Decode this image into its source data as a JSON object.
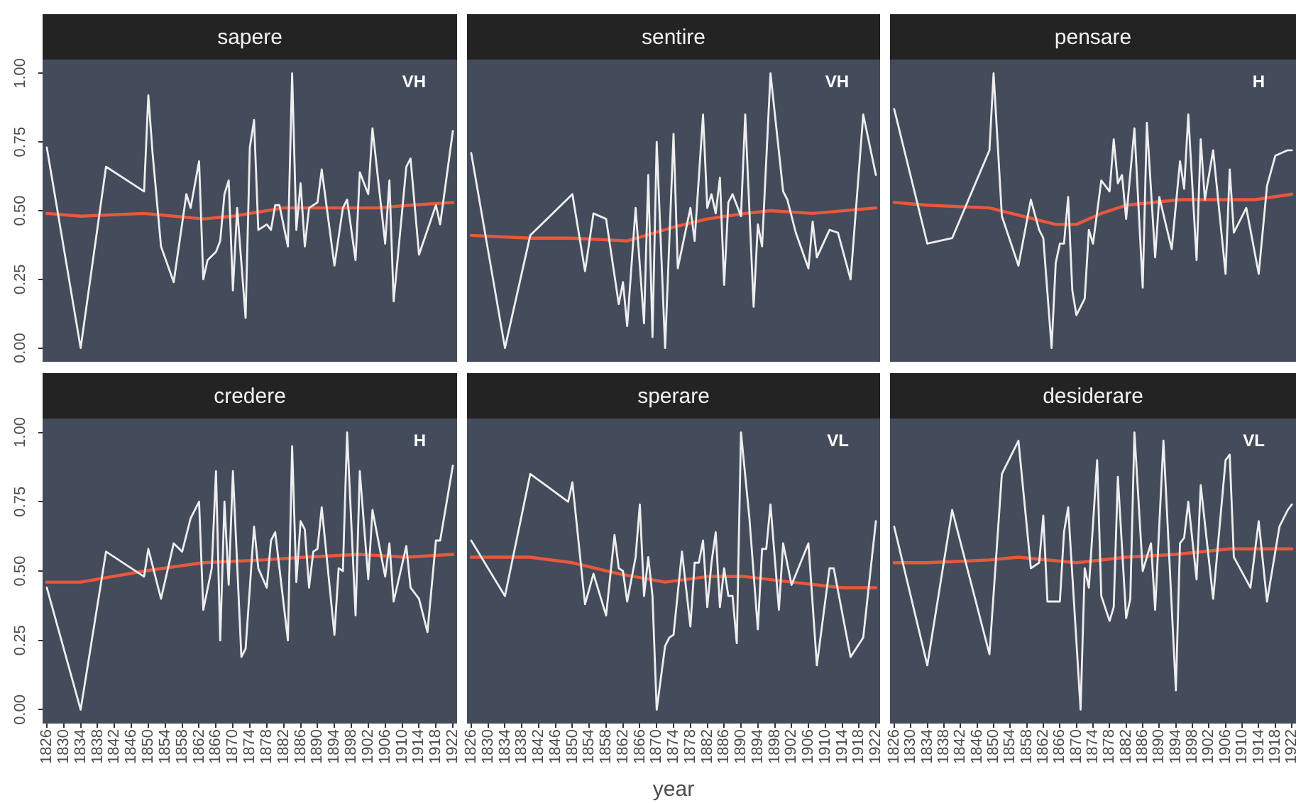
{
  "chart_data": [
    {
      "type": "line",
      "title": "sapere",
      "annotations": [
        "VH"
      ],
      "xlim": [
        1825,
        1923
      ],
      "xticks": [
        1826,
        1830,
        1834,
        1838,
        1842,
        1846,
        1850,
        1854,
        1858,
        1862,
        1866,
        1870,
        1874,
        1878,
        1882,
        1886,
        1890,
        1894,
        1898,
        1902,
        1906,
        1910,
        1914,
        1918,
        1922
      ],
      "ylim": [
        -0.05,
        1.05
      ],
      "yticks": [
        {
          "value": 0,
          "label": "0.00"
        },
        {
          "value": 0.25,
          "label": "0.25"
        },
        {
          "value": 0.5,
          "label": "0.50"
        },
        {
          "value": 0.75,
          "label": "0.75"
        },
        {
          "value": 1,
          "label": "1.00"
        }
      ],
      "tick_labels": "y",
      "grid": false,
      "legend": false,
      "marker": "none",
      "line_style": "solid",
      "series": [
        {
          "color": "#eeeeee",
          "x": [
            1826,
            1834,
            1840,
            1849,
            1850,
            1851,
            1853,
            1856,
            1859,
            1860,
            1862,
            1863,
            1864,
            1866,
            1867,
            1868,
            1869,
            1870,
            1871,
            1873,
            1874,
            1875,
            1876,
            1878,
            1879,
            1880,
            1881,
            1883,
            1884,
            1885,
            1886,
            1887,
            1888,
            1890,
            1891,
            1894,
            1896,
            1897,
            1899,
            1900,
            1902,
            1903,
            1906,
            1907,
            1908,
            1911,
            1912,
            1914,
            1918,
            1919,
            1922
          ],
          "values": [
            0.73,
            0,
            0.66,
            0.57,
            0.92,
            0.71,
            0.37,
            0.24,
            0.56,
            0.51,
            0.68,
            0.25,
            0.32,
            0.35,
            0.39,
            0.56,
            0.61,
            0.21,
            0.51,
            0.11,
            0.73,
            0.83,
            0.43,
            0.45,
            0.43,
            0.52,
            0.52,
            0.37,
            1.0,
            0.43,
            0.6,
            0.37,
            0.51,
            0.53,
            0.65,
            0.3,
            0.51,
            0.54,
            0.32,
            0.64,
            0.56,
            0.8,
            0.38,
            0.61,
            0.17,
            0.66,
            0.69,
            0.34,
            0.52,
            0.45,
            0.79
          ]
        },
        {
          "color": "#e8583c",
          "x": [
            1826,
            1834,
            1849,
            1863,
            1870,
            1882,
            1893,
            1904,
            1912,
            1922
          ],
          "values": [
            0.49,
            0.48,
            0.49,
            0.47,
            0.48,
            0.51,
            0.51,
            0.51,
            0.52,
            0.53
          ]
        }
      ]
    },
    {
      "type": "line",
      "title": "sentire",
      "annotations": [
        "VH"
      ],
      "xlim": [
        1825,
        1923
      ],
      "xticks": [
        1826,
        1830,
        1834,
        1838,
        1842,
        1846,
        1850,
        1854,
        1858,
        1862,
        1866,
        1870,
        1874,
        1878,
        1882,
        1886,
        1890,
        1894,
        1898,
        1902,
        1906,
        1910,
        1914,
        1918,
        1922
      ],
      "ylim": [
        -0.05,
        1.05
      ],
      "tick_labels": false,
      "grid": false,
      "legend": false,
      "marker": "none",
      "line_style": "solid",
      "series": [
        {
          "color": "#eeeeee",
          "x": [
            1826,
            1834,
            1840,
            1850,
            1853,
            1855,
            1858,
            1861,
            1862,
            1863,
            1865,
            1867,
            1868,
            1869,
            1870,
            1872,
            1874,
            1875,
            1878,
            1879,
            1881,
            1882,
            1883,
            1884,
            1885,
            1886,
            1887,
            1888,
            1890,
            1891,
            1893,
            1894,
            1895,
            1897,
            1900,
            1901,
            1903,
            1906,
            1907,
            1908,
            1911,
            1913,
            1916,
            1919,
            1922
          ],
          "values": [
            0.71,
            0,
            0.41,
            0.56,
            0.28,
            0.49,
            0.47,
            0.16,
            0.24,
            0.08,
            0.51,
            0.09,
            0.63,
            0.04,
            0.75,
            0,
            0.78,
            0.29,
            0.51,
            0.39,
            0.85,
            0.51,
            0.56,
            0.49,
            0.62,
            0.23,
            0.53,
            0.56,
            0.48,
            0.85,
            0.15,
            0.45,
            0.37,
            1.0,
            0.57,
            0.54,
            0.42,
            0.29,
            0.46,
            0.33,
            0.43,
            0.42,
            0.25,
            0.85,
            0.63
          ]
        },
        {
          "color": "#e8583c",
          "x": [
            1826,
            1840,
            1850,
            1863,
            1874,
            1882,
            1891,
            1897,
            1907,
            1922
          ],
          "values": [
            0.41,
            0.4,
            0.4,
            0.39,
            0.44,
            0.47,
            0.49,
            0.5,
            0.49,
            0.51
          ]
        }
      ]
    },
    {
      "type": "line",
      "title": "pensare",
      "annotations": [
        "H"
      ],
      "xlim": [
        1825,
        1923
      ],
      "xticks": [
        1826,
        1830,
        1834,
        1838,
        1842,
        1846,
        1850,
        1854,
        1858,
        1862,
        1866,
        1870,
        1874,
        1878,
        1882,
        1886,
        1890,
        1894,
        1898,
        1902,
        1906,
        1910,
        1914,
        1918,
        1922
      ],
      "ylim": [
        -0.05,
        1.05
      ],
      "tick_labels": false,
      "grid": false,
      "legend": false,
      "marker": "none",
      "line_style": "solid",
      "series": [
        {
          "color": "#eeeeee",
          "x": [
            1826,
            1834,
            1840,
            1849,
            1850,
            1852,
            1856,
            1859,
            1861,
            1862,
            1864,
            1865,
            1866,
            1867,
            1868,
            1869,
            1870,
            1872,
            1873,
            1874,
            1876,
            1878,
            1879,
            1880,
            1881,
            1882,
            1884,
            1886,
            1887,
            1889,
            1890,
            1893,
            1895,
            1896,
            1897,
            1899,
            1900,
            1901,
            1903,
            1906,
            1907,
            1908,
            1911,
            1914,
            1916,
            1918,
            1921,
            1922
          ],
          "values": [
            0.87,
            0.38,
            0.4,
            0.72,
            1.0,
            0.48,
            0.3,
            0.54,
            0.43,
            0.4,
            0,
            0.31,
            0.38,
            0.38,
            0.55,
            0.21,
            0.12,
            0.18,
            0.43,
            0.38,
            0.61,
            0.57,
            0.76,
            0.6,
            0.63,
            0.47,
            0.8,
            0.22,
            0.82,
            0.33,
            0.55,
            0.36,
            0.68,
            0.58,
            0.85,
            0.32,
            0.76,
            0.54,
            0.72,
            0.27,
            0.65,
            0.42,
            0.51,
            0.27,
            0.59,
            0.7,
            0.72,
            0.72
          ]
        },
        {
          "color": "#e8583c",
          "x": [
            1826,
            1834,
            1849,
            1857,
            1865,
            1870,
            1876,
            1882,
            1895,
            1913,
            1922
          ],
          "values": [
            0.53,
            0.52,
            0.51,
            0.48,
            0.45,
            0.45,
            0.49,
            0.52,
            0.54,
            0.54,
            0.56
          ]
        }
      ]
    },
    {
      "type": "line",
      "title": "credere",
      "annotations": [
        "H"
      ],
      "xlim": [
        1825,
        1923
      ],
      "xticks": [
        1826,
        1830,
        1834,
        1838,
        1842,
        1846,
        1850,
        1854,
        1858,
        1862,
        1866,
        1870,
        1874,
        1878,
        1882,
        1886,
        1890,
        1894,
        1898,
        1902,
        1906,
        1910,
        1914,
        1918,
        1922
      ],
      "ylim": [
        -0.05,
        1.05
      ],
      "yticks": [
        {
          "value": 0,
          "label": "0.00"
        },
        {
          "value": 0.25,
          "label": "0.25"
        },
        {
          "value": 0.5,
          "label": "0.50"
        },
        {
          "value": 0.75,
          "label": "0.75"
        },
        {
          "value": 1,
          "label": "1.00"
        }
      ],
      "grid": false,
      "legend": false,
      "marker": "none",
      "line_style": "solid",
      "series": [
        {
          "color": "#eeeeee",
          "x": [
            1826,
            1834,
            1840,
            1849,
            1850,
            1853,
            1856,
            1858,
            1860,
            1862,
            1863,
            1865,
            1866,
            1867,
            1868,
            1869,
            1870,
            1872,
            1873,
            1875,
            1876,
            1878,
            1879,
            1880,
            1883,
            1884,
            1885,
            1886,
            1887,
            1888,
            1889,
            1890,
            1891,
            1894,
            1895,
            1896,
            1897,
            1899,
            1900,
            1902,
            1903,
            1906,
            1907,
            1908,
            1911,
            1912,
            1914,
            1916,
            1918,
            1919,
            1922
          ],
          "values": [
            0.44,
            0,
            0.57,
            0.48,
            0.58,
            0.4,
            0.6,
            0.57,
            0.69,
            0.75,
            0.36,
            0.51,
            0.86,
            0.25,
            0.75,
            0.45,
            0.86,
            0.19,
            0.22,
            0.66,
            0.51,
            0.44,
            0.61,
            0.64,
            0.25,
            0.95,
            0.46,
            0.68,
            0.65,
            0.44,
            0.57,
            0.58,
            0.73,
            0.27,
            0.51,
            0.5,
            1.0,
            0.34,
            0.86,
            0.47,
            0.72,
            0.48,
            0.6,
            0.39,
            0.59,
            0.44,
            0.4,
            0.28,
            0.61,
            0.61,
            0.88
          ]
        },
        {
          "color": "#e8583c",
          "x": [
            1826,
            1834,
            1849,
            1863,
            1877,
            1887,
            1900,
            1911,
            1922
          ],
          "values": [
            0.46,
            0.46,
            0.5,
            0.53,
            0.54,
            0.55,
            0.56,
            0.55,
            0.56
          ]
        }
      ]
    },
    {
      "type": "line",
      "title": "sperare",
      "xlabel": "year",
      "annotations": [
        "VL"
      ],
      "xlim": [
        1825,
        1923
      ],
      "xticks": [
        1826,
        1830,
        1834,
        1838,
        1842,
        1846,
        1850,
        1854,
        1858,
        1862,
        1866,
        1870,
        1874,
        1878,
        1882,
        1886,
        1890,
        1894,
        1898,
        1902,
        1906,
        1910,
        1914,
        1918,
        1922
      ],
      "ylim": [
        -0.05,
        1.05
      ],
      "tick_labels": "x",
      "grid": false,
      "legend": false,
      "marker": "none",
      "line_style": "solid",
      "series": [
        {
          "color": "#eeeeee",
          "x": [
            1826,
            1834,
            1840,
            1849,
            1850,
            1853,
            1855,
            1858,
            1860,
            1861,
            1862,
            1863,
            1865,
            1866,
            1867,
            1868,
            1869,
            1870,
            1872,
            1873,
            1874,
            1876,
            1878,
            1879,
            1880,
            1881,
            1882,
            1883,
            1884,
            1885,
            1886,
            1887,
            1888,
            1889,
            1890,
            1892,
            1894,
            1895,
            1896,
            1897,
            1899,
            1900,
            1902,
            1906,
            1908,
            1911,
            1912,
            1916,
            1919,
            1922
          ],
          "values": [
            0.61,
            0.41,
            0.85,
            0.75,
            0.82,
            0.38,
            0.49,
            0.34,
            0.63,
            0.51,
            0.5,
            0.39,
            0.55,
            0.74,
            0.41,
            0.55,
            0.41,
            0,
            0.23,
            0.26,
            0.27,
            0.57,
            0.3,
            0.53,
            0.53,
            0.61,
            0.37,
            0.53,
            0.64,
            0.37,
            0.51,
            0.41,
            0.41,
            0.24,
            1.0,
            0.69,
            0.29,
            0.58,
            0.58,
            0.74,
            0.36,
            0.6,
            0.45,
            0.6,
            0.16,
            0.51,
            0.51,
            0.19,
            0.26,
            0.68
          ]
        },
        {
          "color": "#e8583c",
          "x": [
            1826,
            1840,
            1850,
            1861,
            1872,
            1882,
            1891,
            1902,
            1914,
            1922
          ],
          "values": [
            0.55,
            0.55,
            0.53,
            0.49,
            0.46,
            0.48,
            0.48,
            0.46,
            0.44,
            0.44
          ]
        }
      ]
    },
    {
      "type": "line",
      "title": "desiderare",
      "annotations": [
        "VL"
      ],
      "xlim": [
        1825,
        1923
      ],
      "xticks": [
        1826,
        1830,
        1834,
        1838,
        1842,
        1846,
        1850,
        1854,
        1858,
        1862,
        1866,
        1870,
        1874,
        1878,
        1882,
        1886,
        1890,
        1894,
        1898,
        1902,
        1906,
        1910,
        1914,
        1918,
        1922
      ],
      "ylim": [
        -0.05,
        1.05
      ],
      "tick_labels": "x",
      "grid": false,
      "legend": false,
      "marker": "none",
      "line_style": "solid",
      "series": [
        {
          "color": "#eeeeee",
          "x": [
            1826,
            1834,
            1840,
            1849,
            1852,
            1856,
            1859,
            1861,
            1862,
            1863,
            1866,
            1867,
            1868,
            1871,
            1872,
            1873,
            1875,
            1876,
            1878,
            1879,
            1880,
            1882,
            1883,
            1884,
            1886,
            1888,
            1889,
            1891,
            1894,
            1895,
            1896,
            1897,
            1899,
            1900,
            1903,
            1906,
            1907,
            1908,
            1912,
            1914,
            1916,
            1919,
            1921,
            1922
          ],
          "values": [
            0.66,
            0.16,
            0.72,
            0.2,
            0.85,
            0.97,
            0.51,
            0.53,
            0.7,
            0.39,
            0.39,
            0.64,
            0.73,
            0,
            0.51,
            0.44,
            0.9,
            0.41,
            0.32,
            0.37,
            0.84,
            0.33,
            0.4,
            1.0,
            0.5,
            0.6,
            0.36,
            0.97,
            0.07,
            0.6,
            0.62,
            0.75,
            0.47,
            0.81,
            0.4,
            0.9,
            0.92,
            0.55,
            0.44,
            0.68,
            0.39,
            0.66,
            0.72,
            0.74
          ]
        },
        {
          "color": "#e8583c",
          "x": [
            1826,
            1834,
            1849,
            1856,
            1870,
            1882,
            1894,
            1907,
            1922
          ],
          "values": [
            0.53,
            0.53,
            0.54,
            0.55,
            0.53,
            0.55,
            0.56,
            0.58,
            0.58
          ]
        }
      ]
    }
  ]
}
